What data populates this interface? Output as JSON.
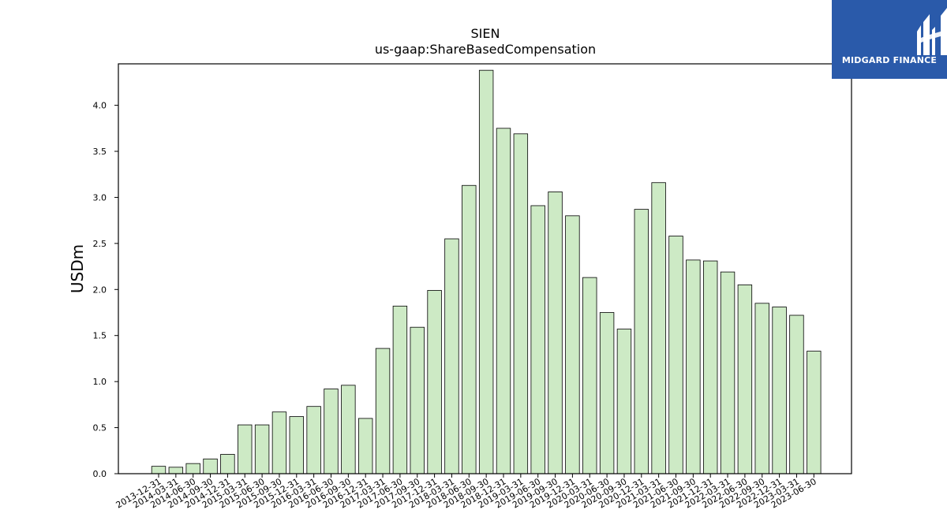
{
  "brand": {
    "name": "MIDGARD FINANCE",
    "background": "#2a5aaa"
  },
  "chart_data": {
    "type": "bar",
    "title": "SIEN",
    "subtitle": "us-gaap:ShareBasedCompensation",
    "xlabel": "",
    "ylabel": "USDm",
    "ylim": [
      0,
      4.45
    ],
    "yticks": [
      "0.0",
      "0.5",
      "1.0",
      "1.5",
      "2.0",
      "2.5",
      "3.0",
      "3.5",
      "4.0"
    ],
    "bar_color": "#cdeac5",
    "grid": false,
    "categories": [
      "2013-12-31",
      "2014-03-31",
      "2014-06-30",
      "2014-09-30",
      "2014-12-31",
      "2015-03-31",
      "2015-06-30",
      "2015-09-30",
      "2015-12-31",
      "2016-03-31",
      "2016-06-30",
      "2016-09-30",
      "2016-12-31",
      "2017-03-31",
      "2017-06-30",
      "2017-09-30",
      "2017-12-31",
      "2018-03-31",
      "2018-06-30",
      "2018-09-30",
      "2018-12-31",
      "2019-03-31",
      "2019-06-30",
      "2019-09-30",
      "2019-12-31",
      "2020-03-31",
      "2020-06-30",
      "2020-09-30",
      "2020-12-31",
      "2021-03-31",
      "2021-06-30",
      "2021-09-30",
      "2021-12-31",
      "2022-03-31",
      "2022-06-30",
      "2022-09-30",
      "2022-12-31",
      "2023-03-31",
      "2023-06-30"
    ],
    "values": [
      0.08,
      0.07,
      0.11,
      0.16,
      0.21,
      0.53,
      0.53,
      0.67,
      0.62,
      0.73,
      0.92,
      0.96,
      0.6,
      1.36,
      1.82,
      1.59,
      1.99,
      2.55,
      3.13,
      4.38,
      3.75,
      3.69,
      2.91,
      3.06,
      2.8,
      2.13,
      1.75,
      1.57,
      2.87,
      3.16,
      2.58,
      2.32,
      2.31,
      2.19,
      2.05,
      1.85,
      1.81,
      1.72,
      1.33
    ]
  }
}
